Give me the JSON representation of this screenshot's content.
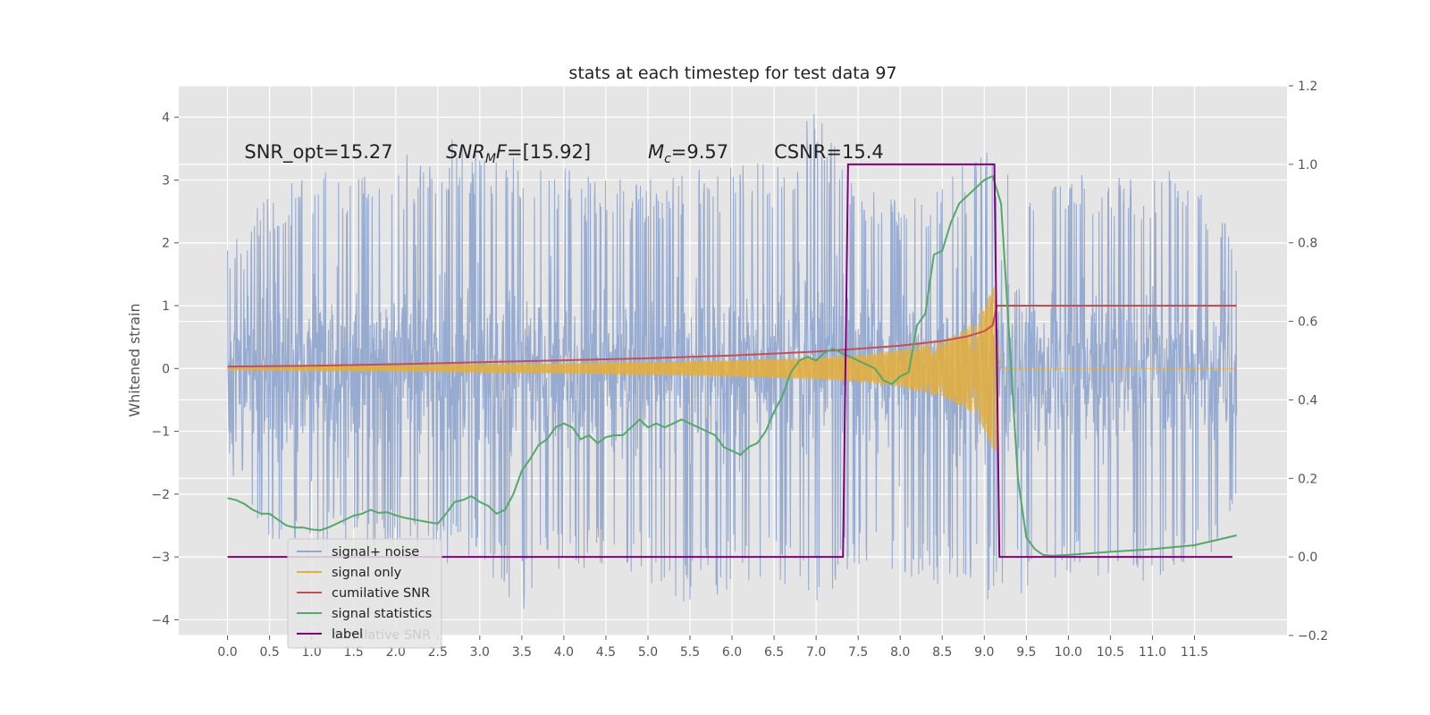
{
  "chart_data": {
    "type": "line",
    "title": "stats at each timestep for test data 97",
    "xlabel": "",
    "ylabel": "Whitened strain",
    "y2label": "",
    "xlim": [
      -0.58,
      12.6
    ],
    "ylim": [
      -4.25,
      4.5
    ],
    "y2lim": [
      -0.2,
      1.2
    ],
    "x_ticks": [
      "0.0",
      "0.5",
      "1.0",
      "1.5",
      "2.0",
      "2.5",
      "3.0",
      "3.5",
      "4.0",
      "4.5",
      "5.0",
      "5.5",
      "6.0",
      "6.5",
      "7.0",
      "7.5",
      "8.0",
      "8.5",
      "9.0",
      "9.5",
      "10.0",
      "10.5",
      "11.0",
      "11.5"
    ],
    "y_ticks": [
      "−4",
      "−3",
      "−2",
      "−1",
      "0",
      "1",
      "2",
      "3",
      "4"
    ],
    "y2_ticks": [
      "−0.2",
      "0.0",
      "0.2",
      "0.4",
      "0.6",
      "0.8",
      "1.0",
      "1.2"
    ],
    "grid": true,
    "legend_placement": "lower-left",
    "annotations": [
      {
        "text": "SNR_opt=15.27",
        "x": 0.2,
        "y": 3.35
      },
      {
        "text": "SNR_MF=[15.92]",
        "main": "SNR",
        "sub": "M",
        "rest": "F=[15.92]",
        "x": 2.6,
        "y": 3.35
      },
      {
        "text": "M_c=9.57",
        "main": "M",
        "sub": "c",
        "rest": "=9.57",
        "x": 5.0,
        "y": 3.35
      },
      {
        "text": "CSNR=15.4",
        "x": 6.5,
        "y": 3.35
      }
    ],
    "series": [
      {
        "name": "signal+ noise",
        "axis": "left",
        "kind": "noise",
        "color": "#92a8cf",
        "x_range": [
          0.0,
          12.0
        ],
        "envelope_max": [
          [
            0.0,
            2.0
          ],
          [
            0.5,
            2.8
          ],
          [
            1.0,
            3.1
          ],
          [
            1.5,
            3.2
          ],
          [
            2.0,
            3.3
          ],
          [
            2.5,
            3.7
          ],
          [
            3.0,
            3.6
          ],
          [
            3.5,
            3.3
          ],
          [
            4.0,
            3.2
          ],
          [
            4.5,
            3.0
          ],
          [
            5.0,
            3.1
          ],
          [
            5.5,
            3.3
          ],
          [
            6.0,
            3.2
          ],
          [
            6.5,
            3.4
          ],
          [
            7.0,
            4.1
          ],
          [
            7.5,
            3.0
          ],
          [
            8.0,
            2.7
          ],
          [
            8.5,
            3.0
          ],
          [
            9.0,
            3.5
          ],
          [
            9.5,
            3.3
          ],
          [
            10.0,
            3.2
          ],
          [
            10.5,
            3.1
          ],
          [
            11.0,
            3.1
          ],
          [
            11.5,
            3.3
          ],
          [
            12.0,
            2.1
          ]
        ],
        "envelope_min": [
          [
            0.0,
            -1.6
          ],
          [
            0.5,
            -2.8
          ],
          [
            1.0,
            -2.9
          ],
          [
            1.5,
            -3.0
          ],
          [
            2.0,
            -2.9
          ],
          [
            2.5,
            -3.1
          ],
          [
            3.0,
            -3.2
          ],
          [
            3.5,
            -3.9
          ],
          [
            4.0,
            -3.3
          ],
          [
            4.5,
            -3.2
          ],
          [
            5.0,
            -3.4
          ],
          [
            5.5,
            -3.8
          ],
          [
            6.0,
            -3.5
          ],
          [
            6.5,
            -3.5
          ],
          [
            7.0,
            -3.8
          ],
          [
            7.5,
            -3.4
          ],
          [
            8.0,
            -3.3
          ],
          [
            8.5,
            -3.5
          ],
          [
            9.0,
            -3.7
          ],
          [
            9.5,
            -3.8
          ],
          [
            10.0,
            -3.4
          ],
          [
            10.5,
            -3.4
          ],
          [
            11.0,
            -3.4
          ],
          [
            11.5,
            -3.3
          ],
          [
            12.0,
            -2.4
          ]
        ]
      },
      {
        "name": "signal only",
        "axis": "left",
        "kind": "chirp",
        "color": "#e5ae38",
        "x_range": [
          0.0,
          12.0
        ],
        "merger_time": 9.15,
        "amplitude_envelope": [
          [
            0.0,
            0.02
          ],
          [
            2.0,
            0.05
          ],
          [
            4.0,
            0.08
          ],
          [
            6.0,
            0.13
          ],
          [
            7.0,
            0.18
          ],
          [
            7.5,
            0.22
          ],
          [
            8.0,
            0.3
          ],
          [
            8.5,
            0.45
          ],
          [
            8.8,
            0.65
          ],
          [
            9.0,
            1.0
          ],
          [
            9.1,
            1.3
          ],
          [
            9.15,
            1.3
          ],
          [
            9.2,
            0.0
          ],
          [
            12.0,
            0.0
          ]
        ]
      },
      {
        "name": "cumilative SNR",
        "axis": "right",
        "color": "#c44e52",
        "points": [
          [
            0.0,
            0.485
          ],
          [
            1.0,
            0.487
          ],
          [
            2.0,
            0.491
          ],
          [
            3.0,
            0.496
          ],
          [
            4.0,
            0.501
          ],
          [
            5.0,
            0.506
          ],
          [
            6.0,
            0.513
          ],
          [
            6.5,
            0.518
          ],
          [
            7.0,
            0.523
          ],
          [
            7.5,
            0.53
          ],
          [
            8.0,
            0.538
          ],
          [
            8.5,
            0.55
          ],
          [
            8.8,
            0.562
          ],
          [
            9.0,
            0.575
          ],
          [
            9.1,
            0.59
          ],
          [
            9.15,
            0.64
          ],
          [
            12.0,
            0.64
          ]
        ]
      },
      {
        "name": "signal statistics",
        "axis": "right",
        "color": "#55a868",
        "points": [
          [
            0.0,
            0.15
          ],
          [
            0.1,
            0.145
          ],
          [
            0.2,
            0.135
          ],
          [
            0.3,
            0.12
          ],
          [
            0.4,
            0.11
          ],
          [
            0.5,
            0.11
          ],
          [
            0.6,
            0.095
          ],
          [
            0.7,
            0.08
          ],
          [
            0.8,
            0.075
          ],
          [
            0.9,
            0.075
          ],
          [
            1.0,
            0.07
          ],
          [
            1.1,
            0.068
          ],
          [
            1.2,
            0.075
          ],
          [
            1.3,
            0.085
          ],
          [
            1.4,
            0.095
          ],
          [
            1.5,
            0.105
          ],
          [
            1.6,
            0.11
          ],
          [
            1.7,
            0.12
          ],
          [
            1.8,
            0.112
          ],
          [
            1.9,
            0.114
          ],
          [
            2.0,
            0.106
          ],
          [
            2.1,
            0.1
          ],
          [
            2.2,
            0.096
          ],
          [
            2.3,
            0.092
          ],
          [
            2.4,
            0.088
          ],
          [
            2.5,
            0.085
          ],
          [
            2.6,
            0.11
          ],
          [
            2.7,
            0.14
          ],
          [
            2.8,
            0.145
          ],
          [
            2.9,
            0.155
          ],
          [
            3.0,
            0.14
          ],
          [
            3.1,
            0.13
          ],
          [
            3.2,
            0.11
          ],
          [
            3.3,
            0.12
          ],
          [
            3.4,
            0.16
          ],
          [
            3.5,
            0.22
          ],
          [
            3.6,
            0.25
          ],
          [
            3.7,
            0.285
          ],
          [
            3.8,
            0.3
          ],
          [
            3.9,
            0.33
          ],
          [
            4.0,
            0.34
          ],
          [
            4.1,
            0.33
          ],
          [
            4.2,
            0.3
          ],
          [
            4.3,
            0.31
          ],
          [
            4.4,
            0.29
          ],
          [
            4.5,
            0.305
          ],
          [
            4.6,
            0.31
          ],
          [
            4.7,
            0.31
          ],
          [
            4.8,
            0.33
          ],
          [
            4.9,
            0.35
          ],
          [
            5.0,
            0.33
          ],
          [
            5.1,
            0.34
          ],
          [
            5.2,
            0.33
          ],
          [
            5.3,
            0.34
          ],
          [
            5.4,
            0.35
          ],
          [
            5.5,
            0.34
          ],
          [
            5.6,
            0.33
          ],
          [
            5.7,
            0.32
          ],
          [
            5.8,
            0.31
          ],
          [
            5.9,
            0.28
          ],
          [
            6.0,
            0.27
          ],
          [
            6.1,
            0.26
          ],
          [
            6.2,
            0.28
          ],
          [
            6.3,
            0.29
          ],
          [
            6.4,
            0.32
          ],
          [
            6.5,
            0.37
          ],
          [
            6.6,
            0.41
          ],
          [
            6.7,
            0.47
          ],
          [
            6.8,
            0.5
          ],
          [
            6.9,
            0.51
          ],
          [
            7.0,
            0.5
          ],
          [
            7.1,
            0.52
          ],
          [
            7.2,
            0.53
          ],
          [
            7.3,
            0.52
          ],
          [
            7.4,
            0.51
          ],
          [
            7.5,
            0.5
          ],
          [
            7.6,
            0.49
          ],
          [
            7.7,
            0.48
          ],
          [
            7.8,
            0.45
          ],
          [
            7.9,
            0.44
          ],
          [
            8.0,
            0.46
          ],
          [
            8.1,
            0.47
          ],
          [
            8.2,
            0.59
          ],
          [
            8.3,
            0.62
          ],
          [
            8.4,
            0.77
          ],
          [
            8.5,
            0.78
          ],
          [
            8.6,
            0.85
          ],
          [
            8.7,
            0.9
          ],
          [
            8.8,
            0.92
          ],
          [
            8.9,
            0.94
          ],
          [
            9.0,
            0.96
          ],
          [
            9.1,
            0.97
          ],
          [
            9.2,
            0.9
          ],
          [
            9.3,
            0.55
          ],
          [
            9.4,
            0.2
          ],
          [
            9.5,
            0.05
          ],
          [
            9.6,
            0.02
          ],
          [
            9.7,
            0.005
          ],
          [
            9.8,
            0.003
          ],
          [
            10.0,
            0.005
          ],
          [
            10.5,
            0.013
          ],
          [
            11.0,
            0.02
          ],
          [
            11.5,
            0.03
          ],
          [
            12.0,
            0.055
          ]
        ]
      },
      {
        "name": "label",
        "axis": "right",
        "color": "#800080",
        "points": [
          [
            0.0,
            0.0
          ],
          [
            7.32,
            0.0
          ],
          [
            7.38,
            1.0
          ],
          [
            9.12,
            1.0
          ],
          [
            9.18,
            0.0
          ],
          [
            11.95,
            0.0
          ]
        ]
      }
    ],
    "legend_ghost": "cumilative SNR"
  }
}
